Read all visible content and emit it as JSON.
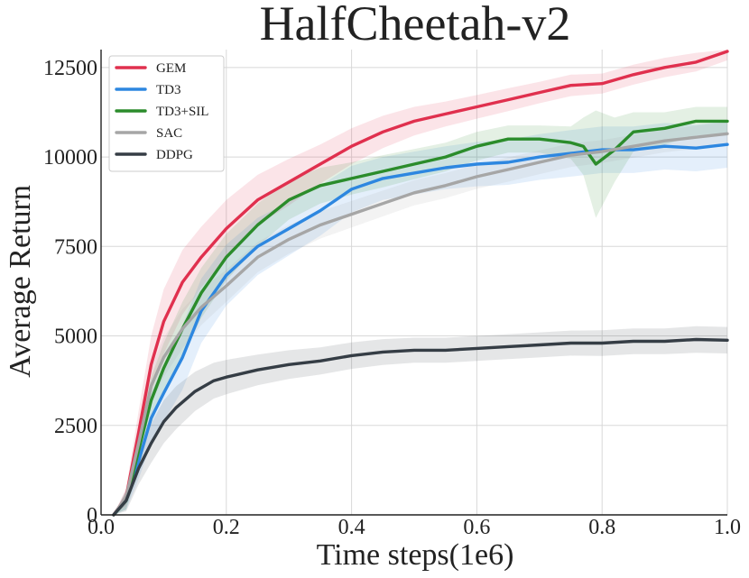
{
  "chart_data": {
    "type": "line",
    "title": "HalfCheetah-v2",
    "xlabel": "Time steps(1e6)",
    "ylabel": "Average Return",
    "xlim": [
      0.0,
      1.0
    ],
    "ylim": [
      0,
      13000
    ],
    "xticks": [
      0.0,
      0.2,
      0.4,
      0.6,
      0.8,
      1.0
    ],
    "xtick_labels": [
      "0.0",
      "0.2",
      "0.4",
      "0.6",
      "0.8",
      "1.0"
    ],
    "yticks": [
      0,
      2500,
      5000,
      7500,
      10000,
      12500
    ],
    "ytick_labels": [
      "0",
      "2500",
      "5000",
      "7500",
      "10000",
      "12500"
    ],
    "grid": true,
    "legend_position": "top-left",
    "series": [
      {
        "name": "GEM",
        "color": "#e0304e",
        "x": [
          0.02,
          0.04,
          0.06,
          0.08,
          0.1,
          0.13,
          0.16,
          0.2,
          0.25,
          0.3,
          0.35,
          0.4,
          0.45,
          0.5,
          0.55,
          0.6,
          0.65,
          0.7,
          0.75,
          0.8,
          0.85,
          0.9,
          0.95,
          1.0
        ],
        "values": [
          0,
          500,
          2300,
          4200,
          5400,
          6500,
          7200,
          8000,
          8800,
          9300,
          9800,
          10300,
          10700,
          11000,
          11200,
          11400,
          11600,
          11800,
          12000,
          12050,
          12300,
          12500,
          12650,
          12950
        ],
        "band": [
          0,
          250,
          600,
          800,
          900,
          900,
          850,
          800,
          700,
          650,
          550,
          500,
          450,
          400,
          350,
          330,
          320,
          300,
          300,
          280,
          280,
          270,
          260,
          250
        ]
      },
      {
        "name": "TD3",
        "color": "#2d87e0",
        "x": [
          0.02,
          0.04,
          0.06,
          0.08,
          0.1,
          0.13,
          0.16,
          0.2,
          0.25,
          0.3,
          0.35,
          0.4,
          0.45,
          0.5,
          0.55,
          0.6,
          0.65,
          0.7,
          0.75,
          0.8,
          0.85,
          0.9,
          0.95,
          1.0
        ],
        "values": [
          0,
          400,
          1500,
          2700,
          3400,
          4400,
          5700,
          6700,
          7500,
          8000,
          8500,
          9100,
          9400,
          9550,
          9700,
          9800,
          9850,
          10000,
          10100,
          10200,
          10200,
          10300,
          10250,
          10350
        ],
        "band": [
          0,
          250,
          500,
          700,
          800,
          900,
          900,
          850,
          800,
          750,
          700,
          650,
          600,
          600,
          600,
          620,
          630,
          640,
          650,
          650,
          650,
          650,
          650,
          650
        ]
      },
      {
        "name": "TD3+SIL",
        "color": "#2b8c2b",
        "x": [
          0.02,
          0.04,
          0.06,
          0.08,
          0.1,
          0.13,
          0.16,
          0.2,
          0.25,
          0.3,
          0.35,
          0.4,
          0.45,
          0.5,
          0.55,
          0.6,
          0.65,
          0.7,
          0.75,
          0.77,
          0.79,
          0.82,
          0.85,
          0.9,
          0.95,
          1.0
        ],
        "values": [
          0,
          400,
          1800,
          3200,
          4100,
          5200,
          6200,
          7200,
          8100,
          8800,
          9200,
          9400,
          9600,
          9800,
          10000,
          10300,
          10500,
          10500,
          10400,
          10300,
          9800,
          10200,
          10700,
          10800,
          11000,
          11000
        ],
        "band": [
          0,
          250,
          500,
          650,
          700,
          750,
          700,
          650,
          600,
          550,
          500,
          450,
          450,
          420,
          400,
          400,
          380,
          380,
          450,
          800,
          1500,
          900,
          550,
          450,
          400,
          400
        ]
      },
      {
        "name": "SAC",
        "color": "#a6a6a6",
        "x": [
          0.02,
          0.04,
          0.06,
          0.08,
          0.1,
          0.13,
          0.16,
          0.2,
          0.25,
          0.3,
          0.35,
          0.4,
          0.45,
          0.5,
          0.55,
          0.6,
          0.65,
          0.7,
          0.75,
          0.8,
          0.85,
          0.9,
          0.95,
          1.0
        ],
        "values": [
          0,
          500,
          2000,
          3600,
          4400,
          5200,
          5800,
          6400,
          7200,
          7700,
          8100,
          8400,
          8700,
          9000,
          9200,
          9450,
          9650,
          9850,
          10050,
          10150,
          10300,
          10450,
          10550,
          10650
        ],
        "band": [
          0,
          200,
          400,
          500,
          550,
          550,
          500,
          450,
          420,
          400,
          380,
          370,
          360,
          350,
          350,
          340,
          340,
          330,
          330,
          320,
          320,
          320,
          320,
          320
        ]
      },
      {
        "name": "DDPG",
        "color": "#353d45",
        "x": [
          0.02,
          0.04,
          0.06,
          0.08,
          0.1,
          0.12,
          0.15,
          0.18,
          0.2,
          0.25,
          0.3,
          0.35,
          0.4,
          0.45,
          0.5,
          0.55,
          0.6,
          0.65,
          0.7,
          0.75,
          0.8,
          0.85,
          0.9,
          0.95,
          1.0
        ],
        "values": [
          0,
          400,
          1300,
          2000,
          2600,
          3000,
          3450,
          3750,
          3850,
          4050,
          4200,
          4300,
          4450,
          4550,
          4600,
          4600,
          4650,
          4700,
          4750,
          4800,
          4800,
          4850,
          4850,
          4900,
          4880
        ],
        "band": [
          0,
          300,
          450,
          550,
          600,
          600,
          550,
          500,
          480,
          430,
          400,
          380,
          370,
          360,
          350,
          350,
          350,
          350,
          350,
          350,
          360,
          360,
          360,
          370,
          370
        ]
      }
    ]
  }
}
